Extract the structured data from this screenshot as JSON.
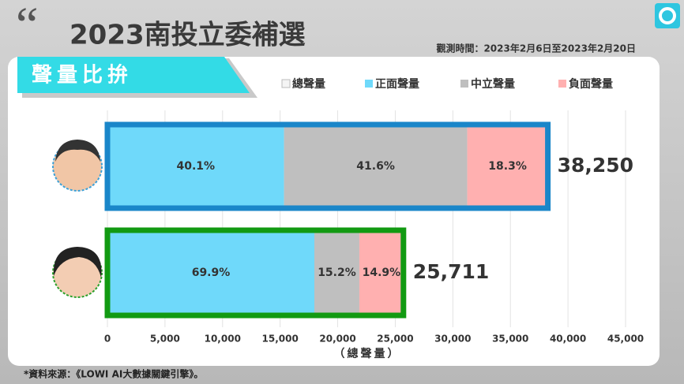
{
  "chart_data": {
    "type": "bar",
    "orientation": "horizontal",
    "stacked": true,
    "title": "2023南投立委補選",
    "subtitle": "觀測時間：2023年2月6日至2023年2月20日",
    "banner": "聲量比拚",
    "xlabel": "（總聲量）",
    "source": "*資料來源：《LOWI AI大數據關鍵引擎》。",
    "categories": [
      null,
      null
    ],
    "series": [
      {
        "name": "正面聲量",
        "color": "#6fd9fa",
        "values": [
          15338,
          17972
        ],
        "value_labels": [
          "40.1%",
          "69.9%"
        ]
      },
      {
        "name": "中立聲量",
        "color": "#bfbfbf",
        "values": [
          15912,
          3908
        ],
        "value_labels": [
          "41.6%",
          "15.2%"
        ]
      },
      {
        "name": "負面聲量",
        "color": "#ffb0b0",
        "values": [
          7000,
          3831
        ],
        "value_labels": [
          "18.3%",
          "14.9%"
        ]
      }
    ],
    "total": {
      "name": "總聲量",
      "color": "#f4f4f4",
      "outline_colors": [
        "#1a86c9",
        "#129a12"
      ],
      "values": [
        38250,
        25711
      ],
      "value_labels": [
        "38,250",
        "25,711"
      ]
    },
    "xlim": [
      0,
      45000
    ],
    "xticks": [
      0,
      {
        "value": 5000,
        "label": "5,000"
      },
      {
        "value": 10000,
        "label": "10,000"
      },
      {
        "value": 15000,
        "label": "15,000"
      },
      {
        "value": 20000,
        "label": "20,000"
      },
      {
        "value": 25000,
        "label": "25,000"
      },
      {
        "value": 30000,
        "label": "30,000"
      },
      {
        "value": 35000,
        "label": "35,000"
      },
      {
        "value": 40000,
        "label": "40,000"
      },
      {
        "value": 45000,
        "label": "45,000"
      }
    ],
    "grid": true
  }
}
